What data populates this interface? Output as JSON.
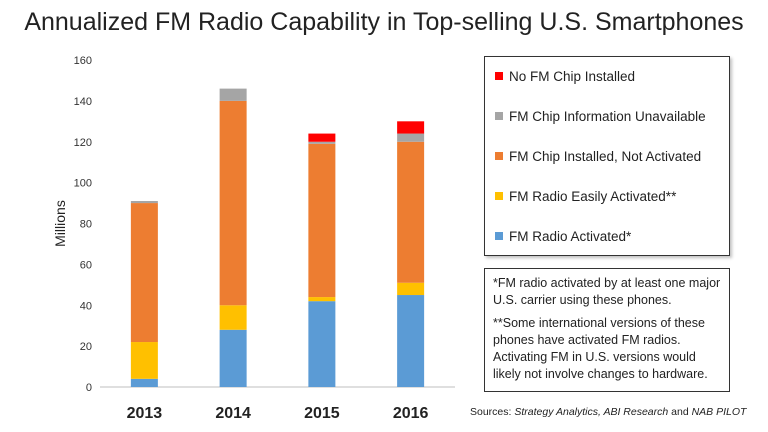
{
  "title": "Annualized FM Radio Capability in Top-selling U.S. Smartphones",
  "chart_data": {
    "type": "bar",
    "stacked": true,
    "categories": [
      "2013",
      "2014",
      "2015",
      "2016"
    ],
    "ylabel": "Millions",
    "ylim": [
      0,
      160
    ],
    "yticks": [
      0,
      20,
      40,
      60,
      80,
      100,
      120,
      140,
      160
    ],
    "grid": false,
    "legend_position": "right",
    "series": [
      {
        "name": "FM Radio Activated*",
        "color": "#5b9bd5",
        "values": [
          4,
          28,
          42,
          45
        ]
      },
      {
        "name": "FM Radio Easily Activated**",
        "color": "#ffc000",
        "values": [
          18,
          12,
          2,
          6
        ]
      },
      {
        "name": "FM Chip Installed, Not Activated",
        "color": "#ed7d31",
        "values": [
          68,
          100,
          75,
          69
        ]
      },
      {
        "name": "FM Chip Information Unavailable",
        "color": "#a5a5a5",
        "values": [
          1,
          6,
          1,
          4
        ]
      },
      {
        "name": "No FM Chip Installed",
        "color": "#ff0000",
        "values": [
          0,
          0,
          4,
          6
        ]
      }
    ]
  },
  "legend_items": [
    {
      "label": "No FM Chip Installed",
      "color": "#ff0000"
    },
    {
      "label": "FM Chip Information Unavailable",
      "color": "#a5a5a5"
    },
    {
      "label": "FM Chip Installed, Not Activated",
      "color": "#ed7d31"
    },
    {
      "label": "FM Radio Easily Activated**",
      "color": "#ffc000"
    },
    {
      "label": "FM Radio Activated*",
      "color": "#5b9bd5"
    }
  ],
  "notes": {
    "note1": "*FM radio activated by at least one major U.S. carrier using these phones.",
    "note2": "**Some international versions of these phones have activated FM radios. Activating FM in U.S. versions would likely not involve changes to hardware."
  },
  "sources": {
    "prefix": "Sources: ",
    "text": "Strategy Analytics, ABI Research",
    "and": " and ",
    "text2": "NAB PILOT"
  }
}
